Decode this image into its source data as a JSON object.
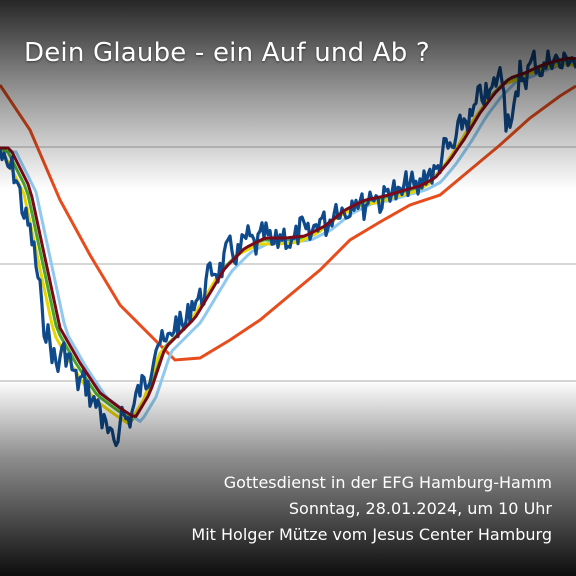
{
  "title": "Dein Glaube - ein Auf und Ab ?",
  "info_lines": [
    "Gottesdienst in der EFG Hamburg-Hamm",
    "Sonntag, 28.01.2024, um 10 Uhr",
    "Mit Holger Mütze vom Jesus Center Hamburg"
  ],
  "colors": {
    "price": "#0f4a8c",
    "ma_short_yellow": "#e8d400",
    "ma_green": "#4aa52e",
    "ma_maroon": "#7a0a1a",
    "ma_lightblue": "#8fc9f0",
    "ma_long_orange": "#e84c1c",
    "gridline": "#c8c8c8",
    "text": "#ffffff"
  }
}
